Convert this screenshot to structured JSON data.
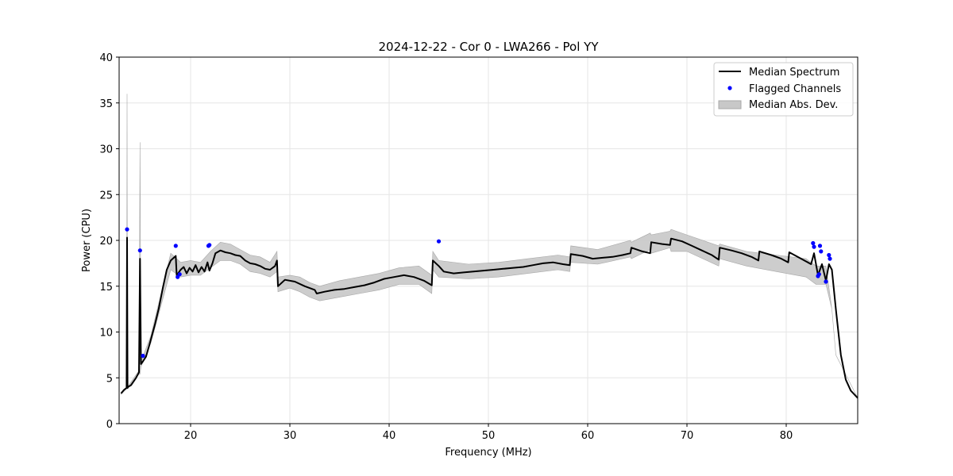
{
  "chart_data": {
    "type": "line",
    "title": "2024-12-22 - Cor 0 - LWA266 - Pol YY",
    "xlabel": "Frequency (MHz)",
    "ylabel": "Power (CPU)",
    "xlim": [
      12.8,
      87.2
    ],
    "ylim": [
      0,
      40
    ],
    "xticks": [
      20,
      30,
      40,
      50,
      60,
      70,
      80
    ],
    "yticks": [
      0,
      5,
      10,
      15,
      20,
      25,
      30,
      35,
      40
    ],
    "grid": true,
    "legend_position": "top-right",
    "colors": {
      "median": "#000000",
      "flagged": "#0000ff",
      "mad": "#c8c8c8"
    },
    "legend": [
      {
        "label": "Median Spectrum",
        "kind": "line"
      },
      {
        "label": "Flagged Channels",
        "kind": "marker"
      },
      {
        "label": "Median Abs. Dev.",
        "kind": "patch"
      }
    ],
    "series": [
      {
        "name": "Median Spectrum",
        "x": [
          13.0,
          13.3,
          13.55,
          13.6,
          13.65,
          13.7,
          14.0,
          14.5,
          14.8,
          14.9,
          15.0,
          15.2,
          15.5,
          15.8,
          16.0,
          16.4,
          16.8,
          17.2,
          17.6,
          18.0,
          18.5,
          18.6,
          18.8,
          19.0,
          19.3,
          19.6,
          19.9,
          20.2,
          20.5,
          20.8,
          21.1,
          21.4,
          21.7,
          21.9,
          22.2,
          22.5,
          23.0,
          23.5,
          24.0,
          24.5,
          25.0,
          25.5,
          26.0,
          26.5,
          27.0,
          27.5,
          28.0,
          28.5,
          28.7,
          28.8,
          29.5,
          30.5,
          31.5,
          32.5,
          32.7,
          33.5,
          34.5,
          35.5,
          36.5,
          37.5,
          38.5,
          39.5,
          40.5,
          41.5,
          42.5,
          43.5,
          44.3,
          44.4,
          45.0,
          45.5,
          46.5,
          47.5,
          48.5,
          49.5,
          50.5,
          51.5,
          52.5,
          53.5,
          54.5,
          55.5,
          56.5,
          57.5,
          58.2,
          58.3,
          59.5,
          60.5,
          61.5,
          62.5,
          63.5,
          64.3,
          64.4,
          65.5,
          66.3,
          66.4,
          67.5,
          68.3,
          68.4,
          69.5,
          70.5,
          71.5,
          72.5,
          73.2,
          73.3,
          74.5,
          75.5,
          76.5,
          77.2,
          77.3,
          78.5,
          79.5,
          80.2,
          80.3,
          81.5,
          82.5,
          82.8,
          83.2,
          83.6,
          84.0,
          84.3,
          84.6,
          85.0,
          85.5,
          86.0,
          86.5,
          87.2
        ],
        "values": [
          3.3,
          3.7,
          3.9,
          20.3,
          3.9,
          4.0,
          4.2,
          5.0,
          5.6,
          18.0,
          6.5,
          6.8,
          7.3,
          8.4,
          9.2,
          10.8,
          12.6,
          14.8,
          16.8,
          17.8,
          18.3,
          16.2,
          16.5,
          16.8,
          17.1,
          16.4,
          17.0,
          16.6,
          17.3,
          16.5,
          17.1,
          16.6,
          17.6,
          16.7,
          17.5,
          18.6,
          18.9,
          18.7,
          18.6,
          18.4,
          18.3,
          17.8,
          17.5,
          17.4,
          17.2,
          16.9,
          16.8,
          17.2,
          17.8,
          15.0,
          15.7,
          15.5,
          15.0,
          14.6,
          14.2,
          14.4,
          14.6,
          14.7,
          14.9,
          15.1,
          15.4,
          15.8,
          16.0,
          16.2,
          16.0,
          15.6,
          15.1,
          17.8,
          17.2,
          16.6,
          16.4,
          16.5,
          16.6,
          16.7,
          16.8,
          16.9,
          17.0,
          17.1,
          17.3,
          17.5,
          17.6,
          17.4,
          17.3,
          18.5,
          18.3,
          18.0,
          18.1,
          18.2,
          18.4,
          18.6,
          19.2,
          18.8,
          18.6,
          19.8,
          19.6,
          19.5,
          20.2,
          19.9,
          19.4,
          18.9,
          18.4,
          17.9,
          19.2,
          18.9,
          18.6,
          18.2,
          17.8,
          18.8,
          18.4,
          18.0,
          17.6,
          18.7,
          18.0,
          17.4,
          18.6,
          16.2,
          17.4,
          15.6,
          17.4,
          16.8,
          12.5,
          7.5,
          4.8,
          3.6,
          2.8
        ]
      },
      {
        "name": "Median Abs. Dev.",
        "x": [
          13.0,
          13.55,
          13.6,
          13.65,
          14.8,
          14.9,
          15.0,
          16.0,
          18.0,
          19.0,
          20.0,
          21.0,
          22.0,
          23.0,
          24.0,
          25.0,
          26.0,
          27.0,
          28.0,
          28.7,
          28.8,
          30.0,
          31.0,
          32.0,
          33.0,
          35.0,
          37.0,
          39.0,
          41.0,
          43.0,
          44.3,
          44.4,
          45.0,
          48.0,
          51.0,
          54.0,
          57.0,
          58.2,
          58.3,
          61.0,
          64.3,
          64.4,
          66.3,
          66.4,
          68.3,
          68.4,
          70.0,
          73.2,
          73.3,
          76.0,
          79.0,
          82.0,
          83.0,
          84.0,
          84.6,
          85.0,
          87.2
        ],
        "lower": [
          3.2,
          3.8,
          3.8,
          3.8,
          5.4,
          5.4,
          6.2,
          8.8,
          16.8,
          16.0,
          16.2,
          16.2,
          17.0,
          17.8,
          17.8,
          17.4,
          16.6,
          16.4,
          16.0,
          16.6,
          14.4,
          14.8,
          14.4,
          13.8,
          13.4,
          13.8,
          14.2,
          14.6,
          15.2,
          15.2,
          14.2,
          16.8,
          16.0,
          15.8,
          16.0,
          16.4,
          16.8,
          16.6,
          17.6,
          17.4,
          18.2,
          18.0,
          19.0,
          18.6,
          19.2,
          18.8,
          18.8,
          17.2,
          18.0,
          17.2,
          16.6,
          16.0,
          15.2,
          15.2,
          12.5,
          7.5,
          2.8
        ],
        "upper": [
          3.4,
          4.0,
          36.0,
          4.0,
          5.8,
          30.7,
          6.8,
          9.6,
          18.6,
          17.6,
          17.8,
          17.6,
          18.8,
          19.8,
          19.6,
          19.0,
          18.4,
          18.2,
          17.6,
          18.8,
          16.0,
          16.2,
          16.0,
          15.4,
          15.0,
          15.6,
          16.0,
          16.4,
          17.0,
          17.2,
          16.2,
          18.8,
          17.8,
          17.4,
          17.6,
          18.0,
          18.4,
          18.2,
          19.4,
          19.0,
          20.0,
          19.8,
          20.8,
          20.6,
          21.0,
          21.2,
          20.6,
          19.4,
          19.6,
          18.8,
          18.4,
          18.0,
          17.2,
          17.2,
          12.5,
          7.5,
          2.8
        ]
      }
    ],
    "flagged_channels": {
      "name": "Flagged Channels",
      "x": [
        13.6,
        14.9,
        15.2,
        18.5,
        18.7,
        18.9,
        21.8,
        21.9,
        45.0,
        82.7,
        82.8,
        83.2,
        83.3,
        83.4,
        83.5,
        84.0,
        84.3,
        84.4
      ],
      "y": [
        21.2,
        18.9,
        7.4,
        19.4,
        16.0,
        16.3,
        19.4,
        19.5,
        19.9,
        19.7,
        19.3,
        16.1,
        16.3,
        19.4,
        18.8,
        15.5,
        18.4,
        18.0
      ]
    }
  }
}
